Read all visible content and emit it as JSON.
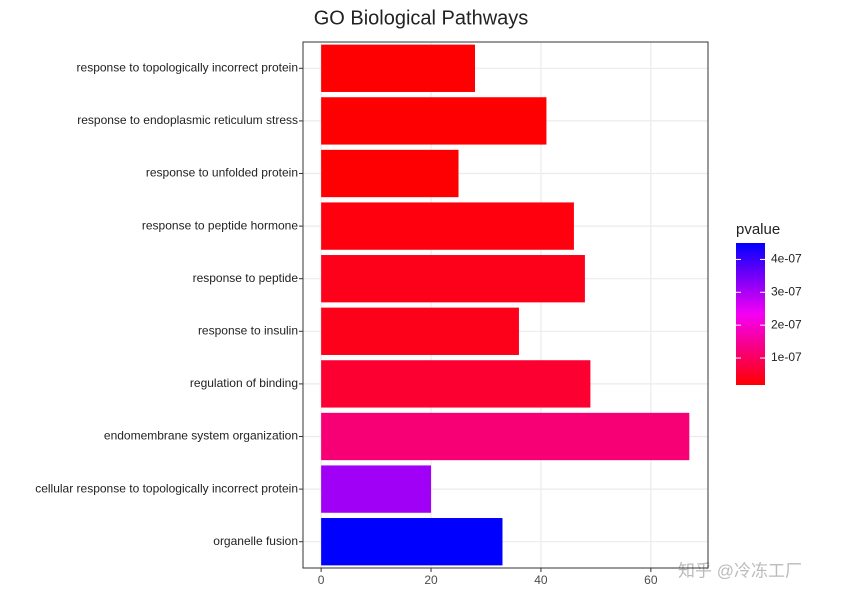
{
  "chart_data": {
    "type": "bar",
    "orientation": "horizontal",
    "title": "GO Biological Pathways",
    "categories": [
      "response to topologically incorrect protein",
      "response to endoplasmic reticulum stress",
      "response to unfolded protein",
      "response to peptide hormone",
      "response to peptide",
      "response to insulin",
      "regulation of binding",
      "endomembrane system organization",
      "cellular response to topologically incorrect protein",
      "organelle fusion"
    ],
    "values": [
      28,
      41,
      25,
      46,
      48,
      36,
      49,
      67,
      20,
      33
    ],
    "pvalues": [
      2e-08,
      2e-08,
      2e-08,
      3e-08,
      4e-08,
      4e-08,
      6e-08,
      1.2e-07,
      3.1e-07,
      4.5e-07
    ],
    "color_scale": {
      "title": "pvalue",
      "low": "#ff0000",
      "high": "#0000ff",
      "lim": [
        1.8e-08,
        4.5e-07
      ],
      "ticks": [
        {
          "value": 1e-07,
          "label": "1e-07"
        },
        {
          "value": 2e-07,
          "label": "2e-07"
        },
        {
          "value": 3e-07,
          "label": "3e-07"
        },
        {
          "value": 4e-07,
          "label": "4e-07"
        }
      ]
    },
    "xlim": [
      -3.3,
      70.4
    ],
    "xticks": [
      0,
      20,
      40,
      60
    ],
    "grid": true
  },
  "watermark": "知乎 @冷冻工厂"
}
